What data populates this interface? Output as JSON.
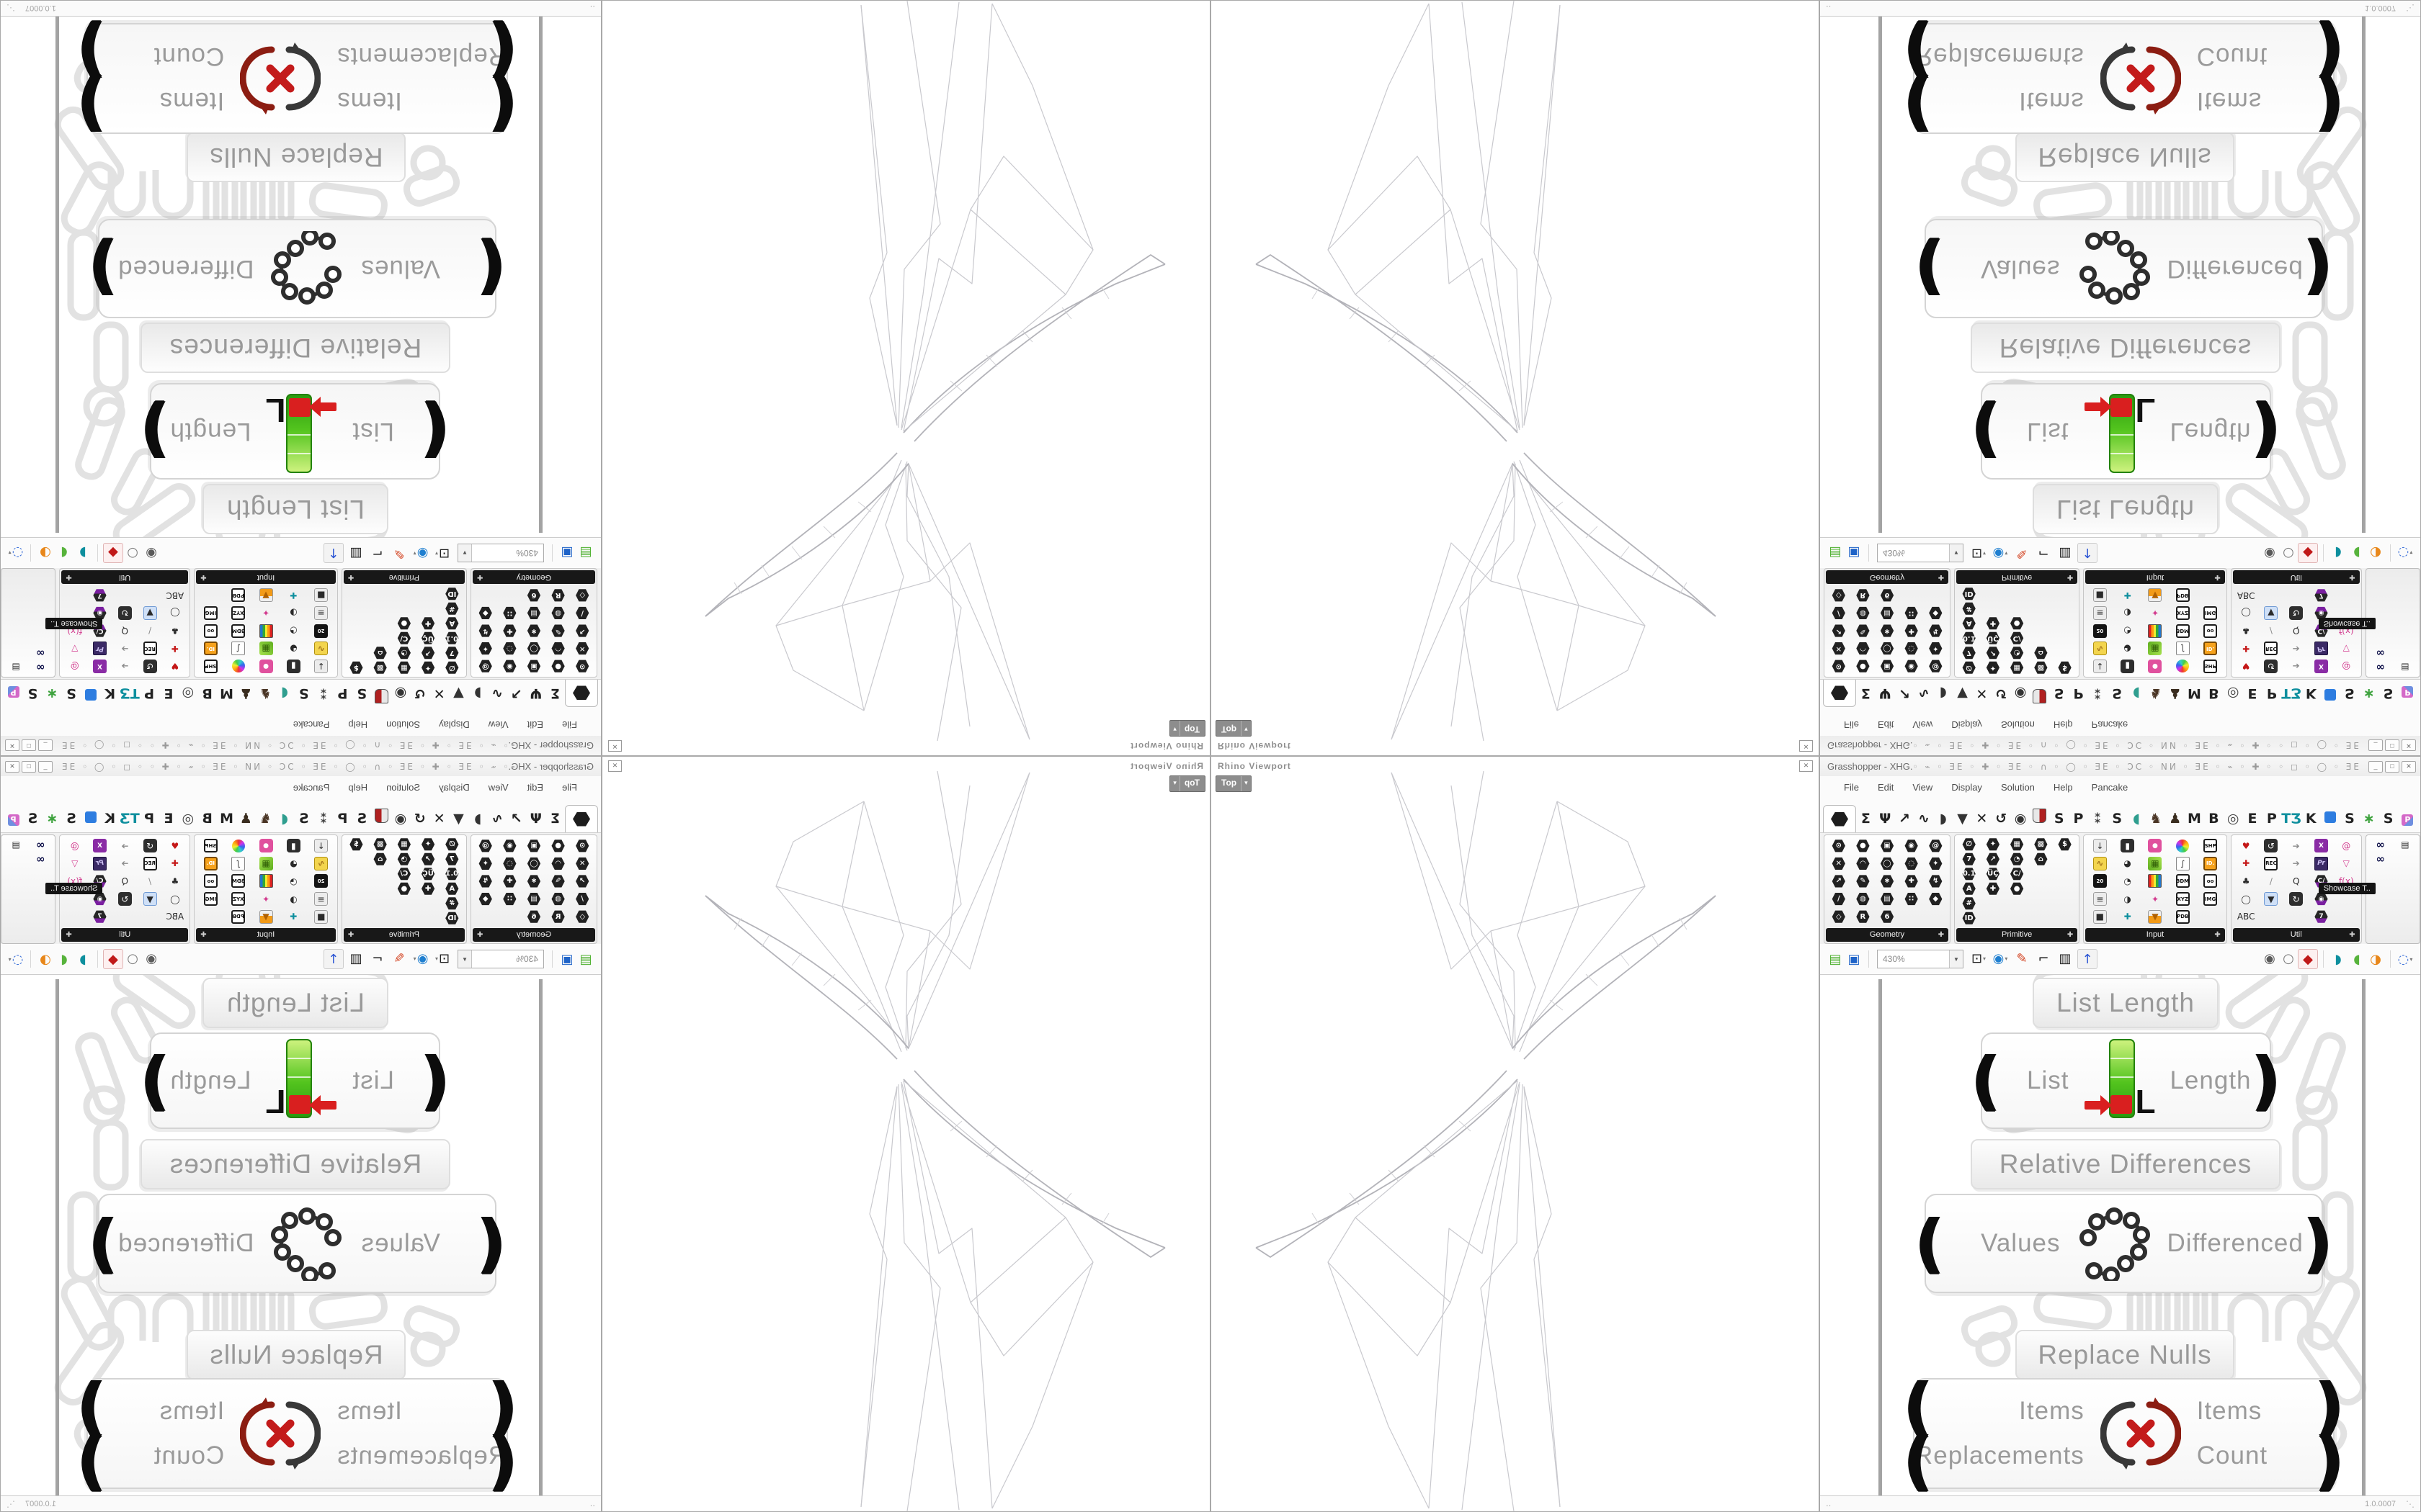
{
  "viewport": {
    "title": "Rhino Viewport",
    "tab_label": "Top",
    "close_glyph": "✕"
  },
  "gh": {
    "title": "Grasshopper - XHG.",
    "titlebar_doodles": "◦ ⌁ ◦ ƎE ◦ ✚ ◦ ƎE ◦ ∩ ◦ ◯ ◦ ƎE ◦ ƆC ◦ NͶ ◦ ƎE ◦ ⌁ ◦ ✚ ◦ ◦ ◻ ◦ ◯ ◦ ƎE ◦ ⌁ ◦ ∩ ◦ ✚ –",
    "window_buttons": [
      {
        "name": "minimize-button",
        "glyph": "_"
      },
      {
        "name": "maximize-button",
        "glyph": "□"
      },
      {
        "name": "close-button",
        "glyph": "✕"
      }
    ],
    "menu": [
      "File",
      "Edit",
      "View",
      "Display",
      "Solution",
      "Help",
      "Pancake"
    ],
    "tabs": [
      {
        "name": "tab-params",
        "glyph": "hexagon",
        "selected": true
      },
      {
        "name": "tab-maths",
        "glyph": "Σ",
        "color": "#222222"
      },
      {
        "name": "tab-sets",
        "glyph": "Ψ",
        "color": "#222222"
      },
      {
        "name": "tab-vector",
        "glyph": "↗",
        "color": "#222222"
      },
      {
        "name": "tab-curve",
        "glyph": "∿",
        "color": "#222222"
      },
      {
        "name": "tab-surface",
        "glyph": "◗",
        "color": "#333333"
      },
      {
        "name": "tab-mesh",
        "glyph": "▼",
        "color": "#333333"
      },
      {
        "name": "tab-intersect",
        "glyph": "✕",
        "color": "#222222"
      },
      {
        "name": "tab-transform",
        "glyph": "↺",
        "color": "#222222"
      },
      {
        "name": "tab-display",
        "glyph": "◉",
        "color": "#333333"
      },
      {
        "name": "tab-shield-plugin",
        "glyph": "shield"
      },
      {
        "name": "tab-s-plugin",
        "glyph": "S",
        "color": "#222222"
      },
      {
        "name": "tab-p-plugin",
        "glyph": "P",
        "color": "#222222"
      },
      {
        "name": "tab-mosquito",
        "glyph": "⁑",
        "color": "#3a3a3a"
      },
      {
        "name": "tab-s-plugin-2",
        "glyph": "S",
        "color": "#222222"
      },
      {
        "name": "tab-turtle",
        "glyph": "◖",
        "color": "#2f9e8f"
      },
      {
        "name": "tab-horse",
        "glyph": "♞",
        "color": "#4a3525"
      },
      {
        "name": "tab-bird",
        "glyph": "♟",
        "color": "#3a2d1f"
      },
      {
        "name": "tab-m-plugin",
        "glyph": "M",
        "color": "#222222"
      },
      {
        "name": "tab-b-plugin",
        "glyph": "B",
        "color": "#222222"
      },
      {
        "name": "tab-round-plugin",
        "glyph": "◎",
        "color": "#444444"
      },
      {
        "name": "tab-e-plugin",
        "glyph": "E",
        "color": "#222222"
      },
      {
        "name": "tab-p-plugin-2",
        "glyph": "P",
        "color": "#222222"
      },
      {
        "name": "tab-t3-plugin",
        "glyph": "TƷ",
        "color": "#0e8f9e"
      },
      {
        "name": "tab-k-plugin",
        "glyph": "K",
        "color": "#222222"
      },
      {
        "name": "tab-square-plugin",
        "glyph": "square",
        "color": "#2e7de0"
      },
      {
        "name": "tab-s-plugin-3",
        "glyph": "S",
        "color": "#222222"
      },
      {
        "name": "tab-grasshopper",
        "glyph": "∗",
        "color": "#3fa33f"
      },
      {
        "name": "tab-s-plugin-4",
        "glyph": "S",
        "color": "#222222"
      },
      {
        "name": "tab-pancake",
        "glyph": "tile-p"
      }
    ],
    "panels": [
      {
        "name": "Geometry",
        "icons": [
          {
            "g": "⊙",
            "cls": "hx",
            "n": "point-param-icon"
          },
          {
            "g": "●",
            "cls": "hx",
            "n": "circle-param-icon"
          },
          {
            "g": "▣",
            "cls": "hx",
            "n": "box-param-icon"
          },
          {
            "g": "◉",
            "cls": "hx",
            "n": "brep-param-icon"
          },
          {
            "g": "@",
            "cls": "hx",
            "n": "spiral-param-icon"
          },
          {
            "g": "✕",
            "cls": "hx",
            "n": "curve-param-icon"
          },
          {
            "g": "◠",
            "cls": "hx",
            "n": "arc-param-icon"
          },
          {
            "g": "◯",
            "cls": "hx",
            "n": "sphere-param-icon"
          },
          {
            "g": "◌",
            "cls": "hx",
            "n": "cloud-param-icon"
          },
          {
            "g": "✦",
            "cls": "hx",
            "n": "twist-param-icon"
          },
          {
            "g": "↗",
            "cls": "hx",
            "n": "vector-param-icon"
          },
          {
            "g": "✎",
            "cls": "hx",
            "n": "sketch-param-icon"
          },
          {
            "g": "∗",
            "cls": "hx",
            "n": "mesh-param-icon"
          },
          {
            "g": "✚",
            "cls": "hx",
            "n": "plane-param-icon"
          },
          {
            "g": "↯",
            "cls": "hx",
            "n": "field-param-icon"
          },
          {
            "g": "∕",
            "cls": "hx",
            "n": "line-param-icon"
          },
          {
            "g": "◍",
            "cls": "hx",
            "n": "surface-param-icon"
          },
          {
            "g": "▤",
            "cls": "hx",
            "n": "lattice-param-icon"
          },
          {
            "g": "∷",
            "cls": "hx",
            "n": "group-param-icon"
          },
          {
            "g": "◆",
            "cls": "hx",
            "n": "geometry-param-icon"
          },
          {
            "g": "◇",
            "cls": "hx",
            "n": "rect-param-icon"
          },
          {
            "g": "R",
            "cls": "hx",
            "n": "abc-param-icon"
          },
          {
            "g": "6",
            "cls": "hx",
            "n": "transform-param-icon"
          },
          {
            "g": "",
            "cls": "plain",
            "n": "blank"
          },
          {
            "g": "",
            "cls": "plain",
            "n": "blank"
          }
        ]
      },
      {
        "name": "Primitive",
        "icons": [
          {
            "g": "∅",
            "cls": "hx",
            "n": "null-param-icon"
          },
          {
            "g": "✦",
            "cls": "hx",
            "n": "spark-param-icon"
          },
          {
            "g": "▦",
            "cls": "hx",
            "n": "matrix-param-icon"
          },
          {
            "g": "▩",
            "cls": "hx",
            "n": "hatch-param-icon"
          },
          {
            "g": "$",
            "cls": "hx",
            "n": "money-param-icon"
          },
          {
            "g": "7",
            "cls": "hx",
            "n": "integer-param-icon"
          },
          {
            "g": "↗",
            "cls": "hx",
            "n": "arrow-param-icon"
          },
          {
            "g": "◔",
            "cls": "hx",
            "n": "time-param-icon"
          },
          {
            "g": "⌂",
            "cls": "hx",
            "n": "pentagon-param-icon"
          },
          {
            "g": "",
            "cls": "plain",
            "n": "blank"
          },
          {
            "g": "0.1",
            "cls": "hx",
            "n": "number-param-icon"
          },
          {
            "g": "ÜÇ",
            "cls": "hx",
            "n": "culture-param-icon"
          },
          {
            "g": "C/",
            "cls": "hx",
            "n": "path-param-icon"
          },
          {
            "g": "",
            "cls": "plain",
            "n": "blank"
          },
          {
            "g": "",
            "cls": "plain",
            "n": "blank"
          },
          {
            "g": "A",
            "cls": "hx",
            "n": "text-param-icon"
          },
          {
            "g": "✚",
            "cls": "hx",
            "n": "boolean-param-icon"
          },
          {
            "g": "●",
            "cls": "hx",
            "n": "ball-param-icon"
          },
          {
            "g": "",
            "cls": "plain",
            "n": "blank"
          },
          {
            "g": "",
            "cls": "plain",
            "n": "blank"
          },
          {
            "g": "#",
            "cls": "hx",
            "n": "index-param-icon"
          },
          {
            "g": "",
            "cls": "plain",
            "n": "blank"
          },
          {
            "g": "",
            "cls": "plain",
            "n": "blank"
          },
          {
            "g": "",
            "cls": "plain",
            "n": "blank"
          },
          {
            "g": "",
            "cls": "plain",
            "n": "blank"
          },
          {
            "g": "ID",
            "cls": "hx",
            "n": "guid-param-icon"
          }
        ]
      },
      {
        "name": "Input",
        "icons": [
          {
            "g": "↓",
            "cls": "tile-gray",
            "n": "import-icon"
          },
          {
            "g": "▮",
            "cls": "tile-dark",
            "n": "button-icon"
          },
          {
            "g": "●",
            "cls": "tile-pink",
            "n": "number-slider-icon"
          },
          {
            "g": "",
            "cls": "rainbow",
            "n": "colour-wheel-icon"
          },
          {
            "g": "SHP",
            "cls": "chip",
            "n": "shp-chip-icon"
          },
          {
            "g": "∿",
            "cls": "tile-yellow",
            "n": "scribble-icon"
          },
          {
            "g": "◕",
            "cls": "plain",
            "n": "knob-icon"
          },
          {
            "g": "▦",
            "cls": "tile-green",
            "n": "colour-swatch-icon"
          },
          {
            "g": "∫",
            "cls": "tile-white",
            "n": "graph-mapper-icon"
          },
          {
            "g": "ID.",
            "cls": "chip-orange",
            "n": "id-tag-icon"
          },
          {
            "g": "20",
            "cls": "chip-dark",
            "n": "calendar-icon"
          },
          {
            "g": "◔",
            "cls": "plain",
            "n": "dial-icon"
          },
          {
            "g": "",
            "cls": "bars",
            "n": "gradient-icon"
          },
          {
            "g": "3DM",
            "cls": "chip",
            "n": "3dm-chip-icon"
          },
          {
            "g": "oo",
            "cls": "chip",
            "n": "eyes-chip-icon"
          },
          {
            "g": "≡",
            "cls": "tile-gray",
            "n": "value-list-icon"
          },
          {
            "g": "◑",
            "cls": "plain",
            "n": "clock-icon"
          },
          {
            "g": "✦",
            "cls": "plain pink",
            "n": "import-coords-icon"
          },
          {
            "g": "XYZ",
            "cls": "chip",
            "n": "xyz-chip-icon"
          },
          {
            "g": "IMG",
            "cls": "chip",
            "n": "img-chip-icon"
          },
          {
            "g": "■",
            "cls": "tile-gray",
            "n": "panel-icon"
          },
          {
            "g": "✚",
            "cls": "plain teal",
            "n": "gizmo-icon"
          },
          {
            "g": "▼",
            "cls": "tile-orange",
            "n": "drip-icon"
          },
          {
            "g": "PDB",
            "cls": "chip",
            "n": "pdb-chip-icon"
          },
          {
            "g": "",
            "cls": "plain",
            "n": "blank"
          }
        ]
      },
      {
        "name": "Util",
        "icons": [
          {
            "g": "♥",
            "cls": "plain red",
            "n": "cherry-picker-icon"
          },
          {
            "g": "↺",
            "cls": "tile-dark",
            "n": "loop-start-icon"
          },
          {
            "g": "➔",
            "cls": "plain grayc",
            "n": "data-dam-icon"
          },
          {
            "g": "X",
            "cls": "tile-purple",
            "n": "x-list-icon"
          },
          {
            "g": "@",
            "cls": "plain pink",
            "n": "snail-icon"
          },
          {
            "g": "✚",
            "cls": "plain red",
            "n": "triad-icon"
          },
          {
            "g": "REC",
            "cls": "chip",
            "n": "data-recorder-icon"
          },
          {
            "g": "➔",
            "cls": "plain grayc",
            "n": "relay-icon"
          },
          {
            "g": "Pr",
            "cls": "tile-prpl",
            "n": "premiere-icon"
          },
          {
            "g": "▽",
            "cls": "plain pink",
            "n": "flask-icon"
          },
          {
            "g": "♣",
            "cls": "plain",
            "n": "tree-icon"
          },
          {
            "g": "∕",
            "cls": "plain grayc",
            "n": "bandage-icon"
          },
          {
            "g": "Q",
            "cls": "plain",
            "n": "timer-cw-icon"
          },
          {
            "g": "C/",
            "cls": "hxp",
            "n": "path-mapper-icon"
          },
          {
            "g": "f(x)",
            "cls": "plain pink",
            "n": "function-icon"
          },
          {
            "g": "◯",
            "cls": "plain",
            "n": "ring-icon"
          },
          {
            "g": "▼",
            "cls": "tile-blue-sel",
            "n": "galapagos-icon"
          },
          {
            "g": "↻",
            "cls": "tile-dark",
            "n": "timer-icon"
          },
          {
            "g": "◉",
            "cls": "hxp",
            "n": "spiral-mapper-icon"
          },
          {
            "g": "",
            "cls": "plain",
            "n": "blank"
          },
          {
            "g": "ABC",
            "cls": "plain",
            "n": "concatenate-icon"
          },
          {
            "g": "",
            "cls": "plain",
            "n": "blank"
          },
          {
            "g": "",
            "cls": "plain",
            "n": "blank"
          },
          {
            "g": "7",
            "cls": "hxp",
            "n": "format-icon"
          },
          {
            "g": "",
            "cls": "plain",
            "n": "blank"
          }
        ]
      },
      {
        "name": "Showcase T..",
        "caption": false,
        "float_label": "Showcase T..",
        "icons": [
          {
            "g": "∞",
            "cls": "goggles",
            "n": "vr-goggles-badge-icon"
          },
          {
            "g": "▤",
            "cls": "plain",
            "n": "presentation-board-icon"
          },
          {
            "g": "∞",
            "cls": "goggles",
            "n": "vr-goggles-icon"
          },
          {
            "g": "",
            "cls": "plain",
            "n": "blank"
          }
        ]
      }
    ],
    "toolbar": {
      "zoom_value": "430%",
      "file_icons": [
        {
          "name": "open-document-button",
          "g": "▤",
          "color": "#4caf2e",
          "size": "18px"
        },
        {
          "name": "save-document-button",
          "g": "▣",
          "color": "#1e63c8",
          "size": "18px"
        }
      ],
      "view_icons": [
        {
          "name": "zoom-extents-button",
          "g": "⊡",
          "color": "#1c1c1c",
          "caret": true
        },
        {
          "name": "preview-eye-button",
          "g": "◉",
          "color": "#1f7fd0",
          "caret": true
        },
        {
          "name": "sketch-pen-button",
          "g": "✎",
          "color": "#d2401e"
        },
        {
          "name": "widget-corner-button",
          "g": "⌐",
          "color": "#1c1c1c"
        },
        {
          "name": "widget-panel-button",
          "g": "▥",
          "color": "#1c1c1c"
        },
        {
          "name": "axes-widget-button",
          "g": "↑",
          "color": "#2b55d4",
          "sel": "sellt"
        }
      ],
      "preview_icons": [
        {
          "name": "preview-off-button",
          "g": "◉",
          "color": "#5a5a5a"
        },
        {
          "name": "preview-wireframe-button",
          "g": "○",
          "color": "#7a7a7a"
        },
        {
          "name": "preview-shaded-button",
          "g": "◆",
          "color": "#c01818",
          "sel": "selred"
        }
      ],
      "mode_icons": [
        {
          "name": "document-preview-teal-button",
          "g": "◗",
          "color": "#0e8f9e"
        },
        {
          "name": "document-preview-green-button",
          "g": "◖",
          "color": "#57b33c"
        },
        {
          "name": "document-preview-custom-button",
          "g": "◑",
          "color": "#e8871a"
        }
      ],
      "selection_icon": {
        "name": "lasso-selection-button",
        "g": "◌",
        "color": "#3a6fd8",
        "caret": true
      }
    },
    "canvas": {
      "groups": [
        {
          "label": "List Length",
          "component": {
            "inputs": [
              "List"
            ],
            "outputs": [
              "Length"
            ],
            "icon": "list-length"
          }
        },
        {
          "label": "Relative Differences",
          "component": {
            "inputs": [
              "Values"
            ],
            "outputs": [
              "Differenced"
            ],
            "icon": "relative-differences"
          }
        },
        {
          "label": "Replace Nulls",
          "component": {
            "inputs": [
              "Items",
              "Replacements"
            ],
            "outputs": [
              "Items",
              "Count"
            ],
            "icon": "replace-nulls"
          }
        }
      ]
    },
    "status": {
      "left": "‥",
      "version": "1.0.0007"
    }
  }
}
